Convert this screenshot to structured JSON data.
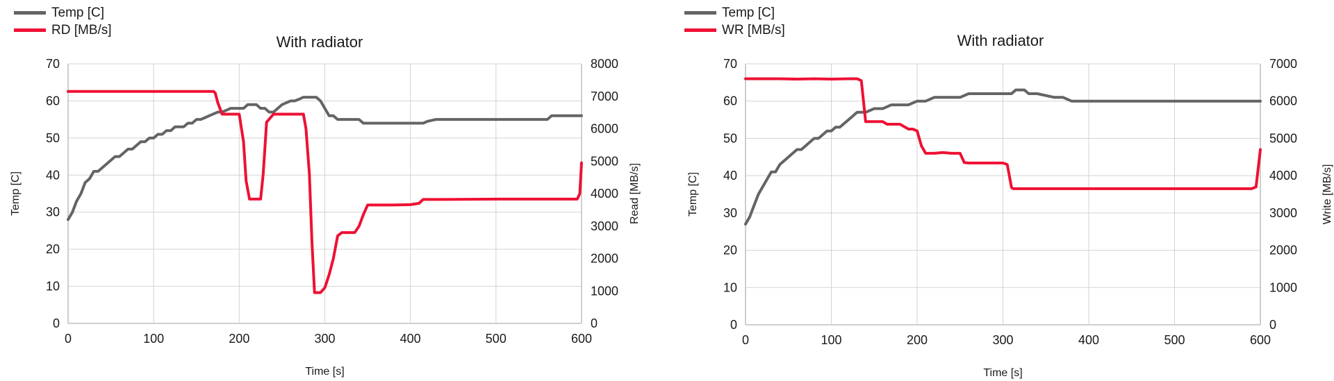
{
  "colors": {
    "temp": "#646464",
    "rate": "#ee1133",
    "grid": "#d3d3d3",
    "axis": "#bdbdbd"
  },
  "charts": [
    {
      "legend": [
        {
          "label": "Temp [C]",
          "color": "#646464"
        },
        {
          "label": "RD [MB/s]",
          "color": "#ee1133"
        }
      ]
    },
    {
      "legend": [
        {
          "label": "Temp [C]",
          "color": "#646464"
        },
        {
          "label": "WR [MB/s]",
          "color": "#ee1133"
        }
      ]
    }
  ],
  "chart_data": [
    {
      "type": "line",
      "title": "With radiator",
      "xlabel": "Time [s]",
      "ylabel": "Temp [C]",
      "y2label": "Read [MB/s]",
      "xlim": [
        0,
        600
      ],
      "ylim": [
        0,
        70
      ],
      "y2lim": [
        0,
        8000
      ],
      "xticks": [
        0,
        100,
        200,
        300,
        400,
        500,
        600
      ],
      "yticks": [
        0,
        10,
        20,
        30,
        40,
        50,
        60,
        70
      ],
      "y2ticks": [
        0,
        1000,
        2000,
        3000,
        4000,
        5000,
        6000,
        7000,
        8000
      ],
      "grid": true,
      "legend_position": "top-left",
      "series": [
        {
          "name": "Temp [C]",
          "axis": "left",
          "color": "#646464",
          "x": [
            0,
            5,
            10,
            15,
            20,
            25,
            30,
            35,
            40,
            45,
            50,
            55,
            60,
            65,
            70,
            75,
            80,
            85,
            90,
            95,
            100,
            105,
            110,
            115,
            120,
            125,
            130,
            135,
            140,
            145,
            150,
            155,
            160,
            165,
            170,
            175,
            180,
            185,
            190,
            195,
            200,
            205,
            210,
            215,
            220,
            225,
            230,
            235,
            240,
            245,
            250,
            255,
            260,
            265,
            270,
            275,
            280,
            285,
            290,
            295,
            300,
            305,
            310,
            315,
            320,
            330,
            340,
            345,
            350,
            400,
            410,
            415,
            420,
            430,
            440,
            500,
            560,
            565,
            600
          ],
          "y": [
            28,
            30,
            33,
            35,
            38,
            39,
            41,
            41,
            42,
            43,
            44,
            45,
            45,
            46,
            47,
            47,
            48,
            49,
            49,
            50,
            50,
            51,
            51,
            52,
            52,
            53,
            53,
            53,
            54,
            54,
            55,
            55,
            55.5,
            56,
            56.5,
            57,
            57,
            57.5,
            58,
            58,
            58,
            58,
            59,
            59,
            59,
            58,
            58,
            57,
            57,
            58,
            59,
            59.5,
            60,
            60,
            60.5,
            61,
            61,
            61,
            61,
            60,
            58,
            56,
            56,
            55,
            55,
            55,
            55,
            54,
            54,
            54,
            54,
            54,
            54.5,
            55,
            55,
            55,
            55,
            56,
            56
          ]
        },
        {
          "name": "RD [MB/s]",
          "axis": "right",
          "color": "#ee1133",
          "x": [
            0,
            165,
            170,
            172,
            175,
            180,
            195,
            200,
            205,
            208,
            212,
            225,
            228,
            232,
            240,
            250,
            260,
            270,
            275,
            278,
            282,
            285,
            288,
            295,
            300,
            305,
            310,
            315,
            320,
            330,
            335,
            340,
            345,
            350,
            360,
            380,
            400,
            410,
            415,
            440,
            500,
            550,
            595,
            598,
            600
          ],
          "y": [
            7150,
            7150,
            7150,
            7100,
            6800,
            6450,
            6450,
            6450,
            5600,
            4400,
            3830,
            3830,
            4600,
            6200,
            6450,
            6450,
            6450,
            6450,
            6450,
            6000,
            4600,
            2500,
            950,
            950,
            1100,
            1500,
            2000,
            2700,
            2800,
            2800,
            2800,
            3000,
            3350,
            3650,
            3650,
            3650,
            3660,
            3700,
            3820,
            3820,
            3830,
            3830,
            3830,
            4000,
            4950
          ]
        }
      ]
    },
    {
      "type": "line",
      "title": "With radiator",
      "xlabel": "Time [s]",
      "ylabel": "Temp [C]",
      "y2label": "Write [MB/s]",
      "xlim": [
        0,
        600
      ],
      "ylim": [
        0,
        70
      ],
      "y2lim": [
        0,
        7000
      ],
      "xticks": [
        0,
        100,
        200,
        300,
        400,
        500,
        600
      ],
      "yticks": [
        0,
        10,
        20,
        30,
        40,
        50,
        60,
        70
      ],
      "y2ticks": [
        0,
        1000,
        2000,
        3000,
        4000,
        5000,
        6000,
        7000
      ],
      "grid": true,
      "legend_position": "top-left",
      "series": [
        {
          "name": "Temp [C]",
          "axis": "left",
          "color": "#646464",
          "x": [
            0,
            5,
            10,
            15,
            20,
            25,
            30,
            35,
            40,
            45,
            50,
            55,
            60,
            65,
            70,
            75,
            80,
            85,
            90,
            95,
            100,
            105,
            110,
            115,
            120,
            125,
            130,
            135,
            140,
            150,
            160,
            170,
            180,
            190,
            200,
            210,
            220,
            250,
            260,
            280,
            300,
            310,
            315,
            325,
            330,
            340,
            360,
            370,
            380,
            400,
            500,
            600
          ],
          "y": [
            27,
            29,
            32,
            35,
            37,
            39,
            41,
            41,
            43,
            44,
            45,
            46,
            47,
            47,
            48,
            49,
            50,
            50,
            51,
            52,
            52,
            53,
            53,
            54,
            55,
            56,
            57,
            57,
            57,
            58,
            58,
            59,
            59,
            59,
            60,
            60,
            61,
            61,
            62,
            62,
            62,
            62,
            63,
            63,
            62,
            62,
            61,
            61,
            60,
            60,
            60,
            60
          ]
        },
        {
          "name": "WR [MB/s]",
          "axis": "right",
          "color": "#ee1133",
          "x": [
            0,
            20,
            40,
            60,
            80,
            100,
            120,
            130,
            135,
            140,
            142,
            150,
            160,
            165,
            170,
            180,
            190,
            195,
            200,
            205,
            210,
            215,
            220,
            230,
            240,
            250,
            255,
            260,
            270,
            280,
            290,
            300,
            305,
            310,
            312,
            320,
            340,
            360,
            380,
            400,
            420,
            440,
            460,
            480,
            500,
            520,
            540,
            560,
            580,
            590,
            595,
            600
          ],
          "y": [
            6600,
            6600,
            6600,
            6590,
            6600,
            6590,
            6600,
            6600,
            6550,
            5450,
            5450,
            5450,
            5450,
            5380,
            5380,
            5380,
            5250,
            5250,
            5200,
            4800,
            4600,
            4600,
            4600,
            4620,
            4600,
            4600,
            4350,
            4340,
            4340,
            4340,
            4340,
            4340,
            4300,
            3680,
            3650,
            3650,
            3650,
            3650,
            3650,
            3650,
            3650,
            3650,
            3650,
            3650,
            3650,
            3650,
            3650,
            3650,
            3650,
            3650,
            3700,
            4700
          ]
        }
      ]
    }
  ]
}
